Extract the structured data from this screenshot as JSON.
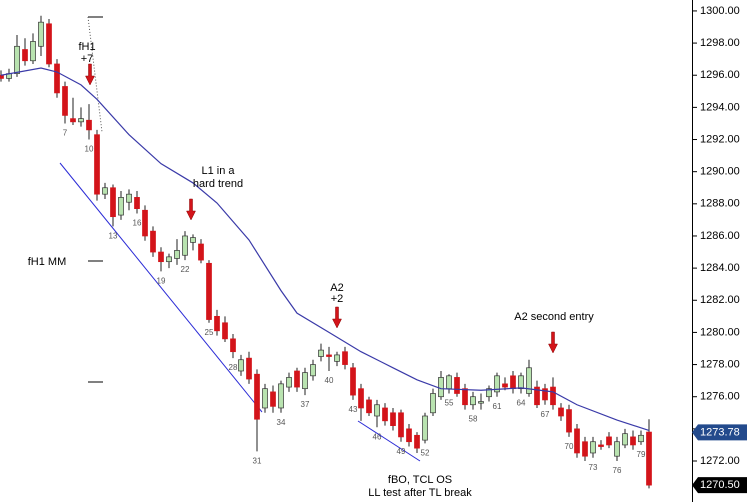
{
  "chart_data": {
    "type": "candlestick",
    "up_color": "#b9e3b0",
    "down_color": "#d3141a",
    "wick_color": "#222222",
    "ylim": [
      1269.45,
      1300.68
    ],
    "yticks": [
      {
        "value": 1272,
        "label": "1272.00"
      },
      {
        "value": 1274,
        "label": "1274.00"
      },
      {
        "value": 1276,
        "label": "1276.00"
      },
      {
        "value": 1278,
        "label": "1278.00"
      },
      {
        "value": 1280,
        "label": "1280.00"
      },
      {
        "value": 1282,
        "label": "1282.00"
      },
      {
        "value": 1284,
        "label": "1284.00"
      },
      {
        "value": 1286,
        "label": "1286.00"
      },
      {
        "value": 1288,
        "label": "1288.00"
      },
      {
        "value": 1290,
        "label": "1290.00"
      },
      {
        "value": 1292,
        "label": "1292.00"
      },
      {
        "value": 1294,
        "label": "1294.00"
      },
      {
        "value": 1296,
        "label": "1296.00"
      },
      {
        "value": 1298,
        "label": "1298.00"
      },
      {
        "value": 1300,
        "label": "1300.00"
      }
    ],
    "categories": [
      null,
      null,
      null,
      null,
      null,
      null,
      null,
      null,
      7,
      null,
      null,
      10,
      null,
      null,
      13,
      null,
      null,
      16,
      null,
      null,
      19,
      null,
      null,
      22,
      null,
      null,
      25,
      null,
      null,
      28,
      null,
      null,
      31,
      null,
      null,
      34,
      null,
      null,
      37,
      null,
      null,
      40,
      null,
      null,
      43,
      null,
      null,
      46,
      null,
      null,
      49,
      null,
      null,
      52,
      null,
      null,
      55,
      null,
      null,
      58,
      null,
      null,
      61,
      null,
      null,
      64,
      null,
      null,
      67,
      null,
      null,
      70,
      null,
      null,
      73,
      null,
      null,
      76,
      null,
      null,
      79,
      null
    ],
    "open": [
      1296.0,
      1295.8,
      1296.1,
      1297.6,
      1296.9,
      1297.8,
      1299.2,
      1296.7,
      1295.3,
      1293.3,
      1293.1,
      1293.2,
      1292.3,
      1288.6,
      1289.0,
      1287.3,
      1288.1,
      1288.4,
      1287.6,
      1286.3,
      1285.0,
      1284.4,
      1284.6,
      1284.8,
      1285.6,
      1285.5,
      1284.3,
      1281.0,
      1280.6,
      1279.6,
      1277.6,
      1278.4,
      1277.4,
      1275.3,
      1276.3,
      1275.3,
      1276.6,
      1277.6,
      1276.5,
      1277.3,
      1278.5,
      1278.6,
      1278.2,
      1278.8,
      1277.8,
      1276.5,
      1275.8,
      1274.8,
      1275.3,
      1275.0,
      1275.0,
      1274.0,
      1273.6,
      1273.3,
      1275.0,
      1276.0,
      1276.5,
      1277.2,
      1276.5,
      1275.5,
      1275.6,
      1276.0,
      1276.3,
      1276.8,
      1277.3,
      1276.5,
      1276.2,
      1276.6,
      1276.5,
      1276.6,
      1275.3,
      1275.2,
      1274.0,
      1273.2,
      1272.5,
      1273.0,
      1273.5,
      1272.3,
      1273.0,
      1273.5,
      1273.2,
      1273.8
    ],
    "high": [
      1296.3,
      1296.4,
      1298.5,
      1298.3,
      1298.6,
      1299.7,
      1299.5,
      1297.0,
      1295.6,
      1294.6,
      1294.0,
      1294.2,
      1292.6,
      1289.3,
      1289.2,
      1288.8,
      1288.9,
      1288.8,
      1287.9,
      1286.6,
      1285.3,
      1284.9,
      1285.8,
      1286.3,
      1286.1,
      1285.8,
      1284.5,
      1281.4,
      1281.0,
      1279.9,
      1278.6,
      1278.8,
      1277.7,
      1276.8,
      1276.7,
      1277.0,
      1277.5,
      1277.8,
      1277.8,
      1278.3,
      1279.3,
      1279.1,
      1278.8,
      1279.1,
      1278.1,
      1276.8,
      1276.0,
      1275.8,
      1275.6,
      1275.3,
      1275.2,
      1274.3,
      1273.8,
      1275.0,
      1276.5,
      1277.6,
      1277.4,
      1277.5,
      1276.8,
      1276.3,
      1276.2,
      1276.7,
      1277.5,
      1277.2,
      1277.6,
      1277.5,
      1278.3,
      1277.0,
      1276.8,
      1277.2,
      1275.6,
      1275.5,
      1274.3,
      1273.5,
      1273.5,
      1273.3,
      1273.8,
      1273.5,
      1274.0,
      1273.9,
      1273.9,
      1274.6
    ],
    "low": [
      1295.6,
      1295.6,
      1295.9,
      1296.6,
      1296.7,
      1297.2,
      1296.5,
      1294.6,
      1293.0,
      1292.9,
      1292.8,
      1292.0,
      1288.2,
      1288.3,
      1286.6,
      1287.0,
      1287.6,
      1287.4,
      1285.7,
      1284.7,
      1283.8,
      1284.0,
      1284.2,
      1284.5,
      1285.1,
      1284.3,
      1280.6,
      1279.8,
      1279.4,
      1278.4,
      1277.3,
      1276.8,
      1272.6,
      1275.0,
      1275.0,
      1275.0,
      1276.3,
      1276.3,
      1276.1,
      1277.0,
      1278.2,
      1277.6,
      1277.9,
      1277.7,
      1275.8,
      1274.5,
      1274.8,
      1274.1,
      1274.2,
      1273.9,
      1273.2,
      1272.9,
      1272.5,
      1273.1,
      1274.8,
      1275.8,
      1276.2,
      1276.0,
      1275.2,
      1275.2,
      1275.2,
      1275.7,
      1276.0,
      1276.4,
      1276.2,
      1276.2,
      1276.0,
      1275.3,
      1275.5,
      1275.2,
      1274.5,
      1273.5,
      1272.2,
      1272.0,
      1272.2,
      1272.7,
      1272.8,
      1272.0,
      1272.8,
      1272.7,
      1273.0,
      1270.3
    ],
    "close": [
      1295.8,
      1296.1,
      1297.8,
      1296.9,
      1298.1,
      1299.3,
      1296.7,
      1294.9,
      1293.5,
      1293.1,
      1293.3,
      1292.6,
      1288.6,
      1289.0,
      1287.2,
      1288.4,
      1288.6,
      1287.7,
      1286.0,
      1285.0,
      1284.4,
      1284.7,
      1285.1,
      1286.0,
      1285.9,
      1284.5,
      1280.8,
      1280.1,
      1279.6,
      1278.8,
      1278.3,
      1277.1,
      1274.6,
      1276.5,
      1275.4,
      1276.8,
      1277.2,
      1276.6,
      1277.5,
      1278.0,
      1278.9,
      1278.5,
      1278.6,
      1278.0,
      1276.1,
      1275.3,
      1275.0,
      1275.5,
      1274.5,
      1274.2,
      1273.5,
      1273.2,
      1272.8,
      1274.8,
      1276.2,
      1277.2,
      1277.3,
      1276.2,
      1275.5,
      1276.0,
      1275.7,
      1276.5,
      1277.3,
      1276.6,
      1276.5,
      1277.3,
      1277.8,
      1275.5,
      1275.8,
      1275.5,
      1274.8,
      1273.8,
      1272.5,
      1272.3,
      1273.2,
      1272.9,
      1273.0,
      1273.2,
      1273.7,
      1273.0,
      1273.6,
      1270.5
    ],
    "moving_average": {
      "color": "#3a3aa8",
      "x": [
        0,
        5,
        7,
        10,
        12,
        16,
        20,
        24,
        27,
        31,
        35,
        37,
        41,
        45,
        49,
        52,
        55,
        60,
        65,
        69,
        72,
        77,
        81
      ],
      "values": [
        1296.0,
        1296.45,
        1296.2,
        1295.4,
        1294.5,
        1292.3,
        1290.5,
        1289.3,
        1288.05,
        1285.75,
        1282.6,
        1281.2,
        1280.0,
        1278.8,
        1277.8,
        1277.05,
        1276.5,
        1276.4,
        1276.55,
        1276.3,
        1275.5,
        1274.55,
        1273.9
      ]
    },
    "price_tags": [
      1273.78,
      {
        "value": 1270.5,
        "label": "1270.50"
      }
    ],
    "price_tag_colors": [
      "#234a8c",
      "#000000"
    ],
    "annotations": [
      "fH1",
      "+7",
      "L1 in a",
      "hard trend",
      "fH1 MM",
      "A2",
      "+2",
      "A2 second entry",
      "fBO, TCL OS",
      "LL test after TL break"
    ]
  }
}
